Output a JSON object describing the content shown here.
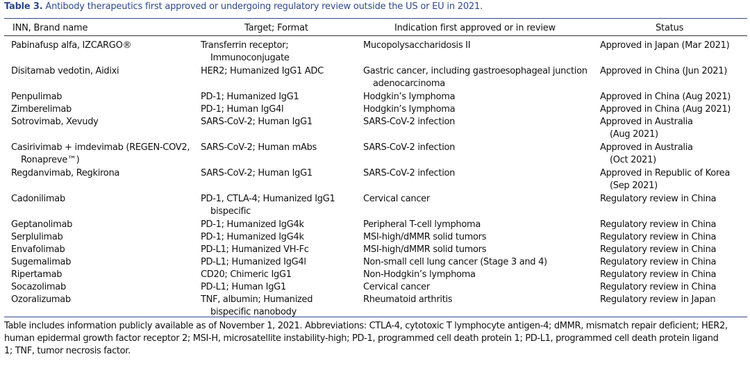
{
  "caption": {
    "label": "Table 3.",
    "text": " Antibody therapeutics first approved or undergoing regulatory review outside the US or EU in 2021."
  },
  "headers": [
    "INN, Brand name",
    "Target; Format",
    "Indication first approved or in review",
    "Status"
  ],
  "rows": [
    {
      "name": [
        "Pabinafusp alfa, IZCARGO®"
      ],
      "target": [
        "Transferrin receptor;",
        "Immunoconjugate"
      ],
      "indication": [
        "Mucopolysaccharidosis II"
      ],
      "status": [
        "Approved in Japan (Mar 2021)"
      ]
    },
    {
      "name": [
        "Disitamab vedotin, Aidixi"
      ],
      "target": [
        "HER2; Humanized IgG1 ADC"
      ],
      "indication": [
        "Gastric cancer, including gastroesophageal junction",
        "adenocarcinoma"
      ],
      "status": [
        "Approved in China (Jun 2021)"
      ]
    },
    {
      "name": [
        "Penpulimab"
      ],
      "target": [
        "PD-1; Humanized IgG1"
      ],
      "indication": [
        "Hodgkin’s lymphoma"
      ],
      "status": [
        "Approved in China (Aug 2021)"
      ]
    },
    {
      "name": [
        "Zimberelimab"
      ],
      "target": [
        "PD-1; Human IgG4l"
      ],
      "indication": [
        "Hodgkin’s lymphoma"
      ],
      "status": [
        "Approved in China (Aug 2021)"
      ]
    },
    {
      "name": [
        "Sotrovimab, Xevudy"
      ],
      "target": [
        "SARS-CoV-2; Human IgG1"
      ],
      "indication": [
        "SARS-CoV-2 infection"
      ],
      "status": [
        "Approved in Australia",
        "(Aug 2021)"
      ]
    },
    {
      "name": [
        "Casirivimab + imdevimab (REGEN-COV2,",
        "Ronapreve™)"
      ],
      "target": [
        "SARS-CoV-2; Human mAbs"
      ],
      "indication": [
        "SARS-CoV-2 infection"
      ],
      "status": [
        "Approved in Australia",
        "(Oct 2021)"
      ]
    },
    {
      "name": [
        "Regdanvimab, Regkirona"
      ],
      "target": [
        "SARS-CoV-2; Human IgG1"
      ],
      "indication": [
        "SARS-CoV-2 infection"
      ],
      "status": [
        "Approved in Republic of Korea",
        "(Sep 2021)"
      ]
    },
    {
      "name": [
        "Cadonilimab"
      ],
      "target": [
        "PD-1, CTLA-4; Humanized IgG1",
        "bispecific"
      ],
      "indication": [
        "Cervical cancer"
      ],
      "status": [
        "Regulatory review in China"
      ]
    },
    {
      "name": [
        "Geptanolimab"
      ],
      "target": [
        "PD-1; Humanized IgG4k"
      ],
      "indication": [
        "Peripheral T-cell lymphoma"
      ],
      "status": [
        "Regulatory review in China"
      ]
    },
    {
      "name": [
        "Serplulimab"
      ],
      "target": [
        "PD-1; Humanized IgG4k"
      ],
      "indication": [
        "MSI-high/dMMR solid tumors"
      ],
      "status": [
        "Regulatory review in China"
      ]
    },
    {
      "name": [
        "Envafolimab"
      ],
      "target": [
        "PD-L1; Humanized VH-Fc"
      ],
      "indication": [
        "MSI-high/dMMR solid tumors"
      ],
      "status": [
        "Regulatory review in China"
      ]
    },
    {
      "name": [
        "Sugemalimab"
      ],
      "target": [
        "PD-L1; Humanized IgG4l"
      ],
      "indication": [
        "Non-small cell lung cancer (Stage 3 and 4)"
      ],
      "status": [
        "Regulatory review in China"
      ]
    },
    {
      "name": [
        "Ripertamab"
      ],
      "target": [
        "CD20; Chimeric IgG1"
      ],
      "indication": [
        "Non-Hodgkin’s lymphoma"
      ],
      "status": [
        "Regulatory review in China"
      ]
    },
    {
      "name": [
        "Socazolimab"
      ],
      "target": [
        "PD-L1; Human IgG1"
      ],
      "indication": [
        "Cervical cancer"
      ],
      "status": [
        "Regulatory review in China"
      ]
    },
    {
      "name": [
        "Ozoralizumab"
      ],
      "target": [
        "TNF, albumin; Humanized",
        "bispecific nanobody"
      ],
      "indication": [
        "Rheumatoid arthritis"
      ],
      "status": [
        "Regulatory review in Japan"
      ]
    }
  ],
  "footnote": [
    "Table includes information publicly available as of November 1, 2021. Abbreviations: CTLA-4, cytotoxic T lymphocyte antigen-4; dMMR, mismatch repair deficient; HER2,",
    "human epidermal growth factor receptor 2; MSI-H, microsatellite instability-high; PD-1, programmed cell death protein 1; PD-L1, programmed cell death protein ligand",
    "1; TNF, tumor necrosis factor."
  ]
}
